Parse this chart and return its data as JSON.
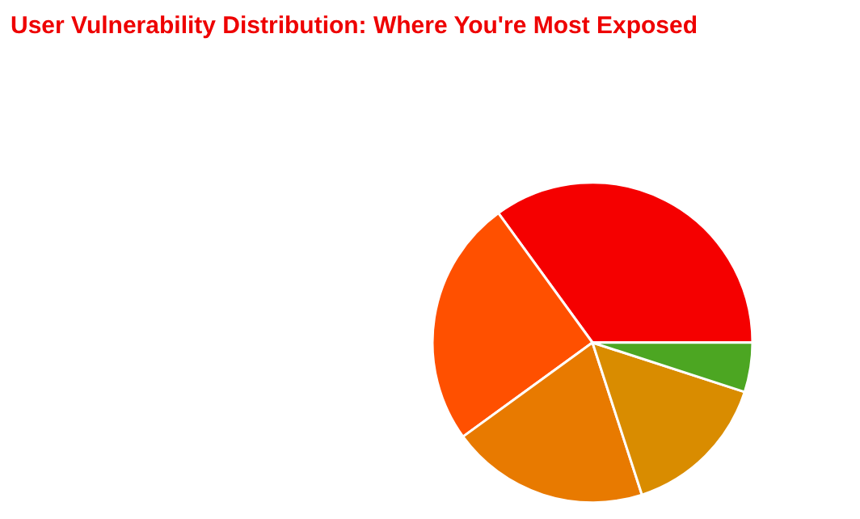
{
  "chart_data": {
    "type": "pie",
    "title": "User Vulnerability Distribution: Where You're Most Exposed",
    "categories": [
      null,
      null,
      null,
      null,
      null
    ],
    "values": [
      35,
      25,
      20,
      15,
      5
    ],
    "colors": [
      "#f50000",
      "#ff5000",
      "#e87a00",
      "#d98c00",
      "#4ca622"
    ]
  }
}
